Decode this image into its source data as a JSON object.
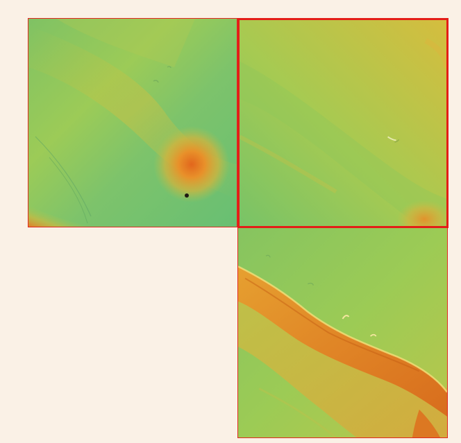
{
  "background_color": "#faf1e6",
  "tiles": [
    {
      "id": "tile-1",
      "selected": false,
      "feature": "mound",
      "border_color": "#e0281f"
    },
    {
      "id": "tile-2",
      "selected": true,
      "feature": "gentle slope",
      "border_color": "#e41d17"
    },
    {
      "id": "tile-3",
      "selected": false,
      "feature": "ridge",
      "border_color": "#e0281f"
    }
  ],
  "colormap": [
    "#5cbd6a",
    "#9fc94e",
    "#dcba3a",
    "#e28a28",
    "#d8551a"
  ]
}
